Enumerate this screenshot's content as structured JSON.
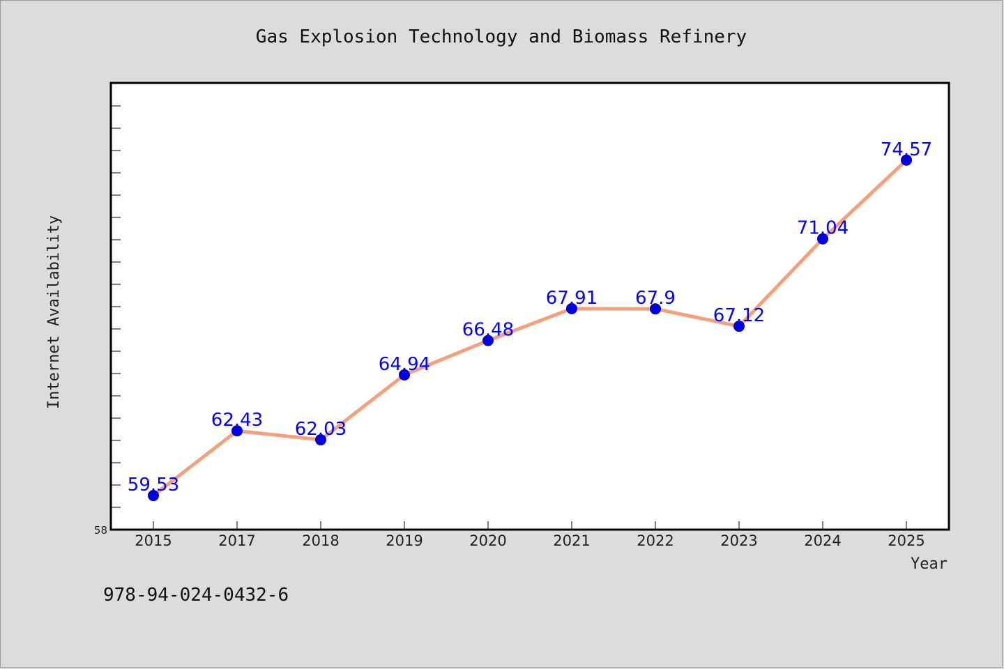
{
  "chart_data": {
    "type": "line",
    "title": "Gas Explosion Technology and Biomass Refinery",
    "xlabel": "Year",
    "ylabel": "Internet Availability",
    "categories": [
      "2015",
      "2017",
      "2018",
      "2019",
      "2020",
      "2021",
      "2022",
      "2023",
      "2024",
      "2025"
    ],
    "series": [
      {
        "values": [
          59.53,
          62.43,
          62.03,
          64.94,
          66.48,
          67.91,
          67.9,
          67.12,
          71.04,
          74.57
        ],
        "labels": [
          "59.53",
          "62.43",
          "62.03",
          "64.94",
          "66.48",
          "67.91",
          "67.9",
          "67.12",
          "71.04",
          "74.57"
        ]
      }
    ],
    "ylim": [
      58,
      78
    ],
    "y_tick_labels": [
      "58"
    ],
    "grid": false,
    "legend": "none"
  },
  "colors": {
    "background": "#dcdcdc",
    "plot_background": "#ffffff",
    "line": "#f4a07c",
    "marker": "#0000ee",
    "data_label": "#0000ff"
  },
  "footer": {
    "isbn": "978-94-024-0432-6"
  }
}
